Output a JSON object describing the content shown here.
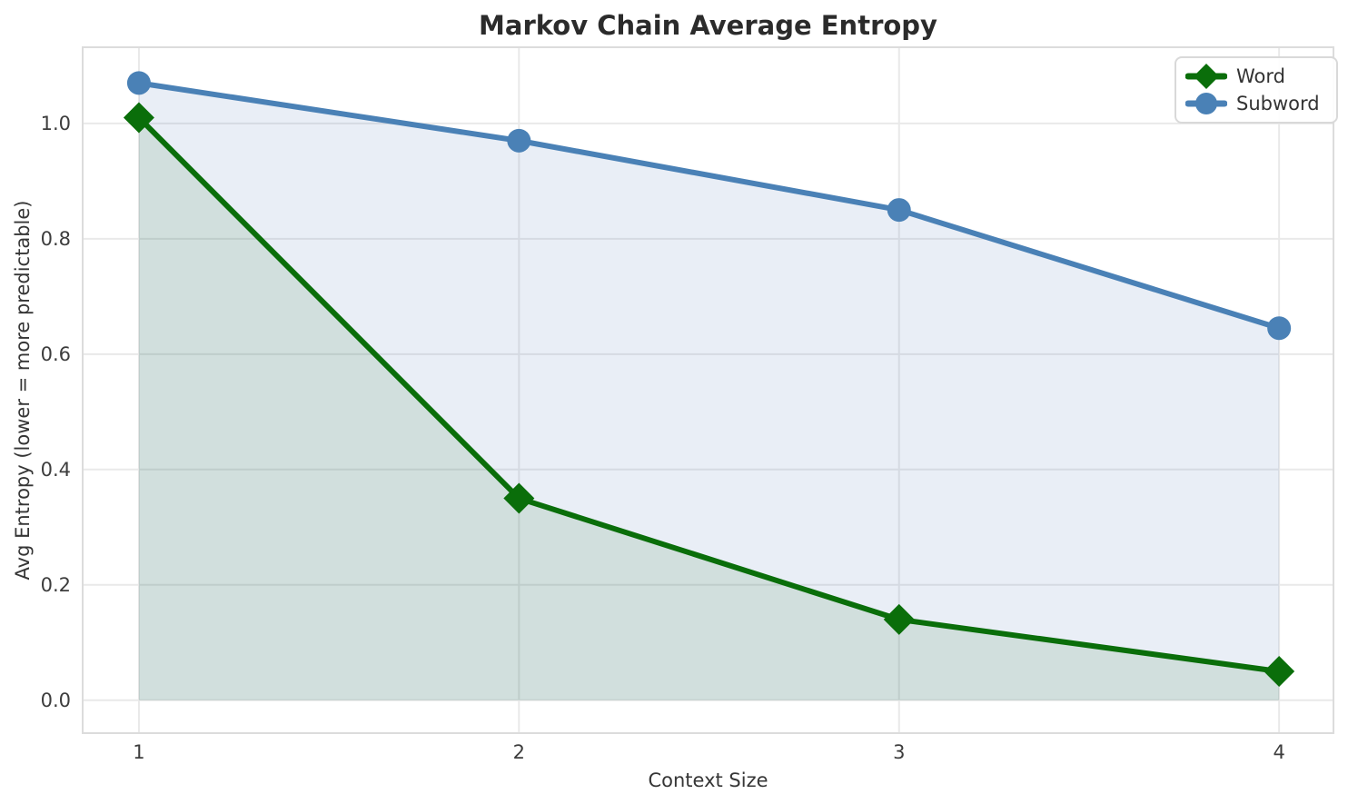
{
  "chart_data": {
    "type": "line",
    "title": "Markov Chain Average Entropy",
    "xlabel": "Context Size",
    "ylabel": "Avg Entropy (lower = more predictable)",
    "x": [
      1,
      2,
      3,
      4
    ],
    "series": [
      {
        "name": "Word",
        "values": [
          1.01,
          0.35,
          0.14,
          0.05
        ],
        "color": "#0a6e0a",
        "marker": "diamond",
        "fill_color": "rgba(0,100,0,0.10)"
      },
      {
        "name": "Subword",
        "values": [
          1.07,
          0.97,
          0.85,
          0.645
        ],
        "color": "#4a81b6",
        "marker": "circle",
        "fill_color": "rgba(74,114,182,0.12)"
      }
    ],
    "xticks": {
      "values": [
        1,
        2,
        3,
        4
      ],
      "labels": [
        "1",
        "2",
        "3",
        "4"
      ]
    },
    "yticks": {
      "values": [
        0.0,
        0.2,
        0.4,
        0.6,
        0.8,
        1.0
      ],
      "labels": [
        "0.0",
        "0.2",
        "0.4",
        "0.6",
        "0.8",
        "1.0"
      ]
    },
    "xlim": [
      0.852,
      4.143
    ],
    "ylim": [
      -0.057,
      1.132
    ],
    "grid": true,
    "fill_baseline": 0.0,
    "legend_position": "upper right",
    "legend_entries": [
      "Word",
      "Subword"
    ]
  },
  "styles": {
    "background": "#ffffff",
    "grid_color": "#e9e9e9",
    "spine_color": "#dcdcdc",
    "title_color": "#2b2b2b",
    "tick_color": "#3d3d3d",
    "legend_border_color": "#d9d9d9"
  }
}
